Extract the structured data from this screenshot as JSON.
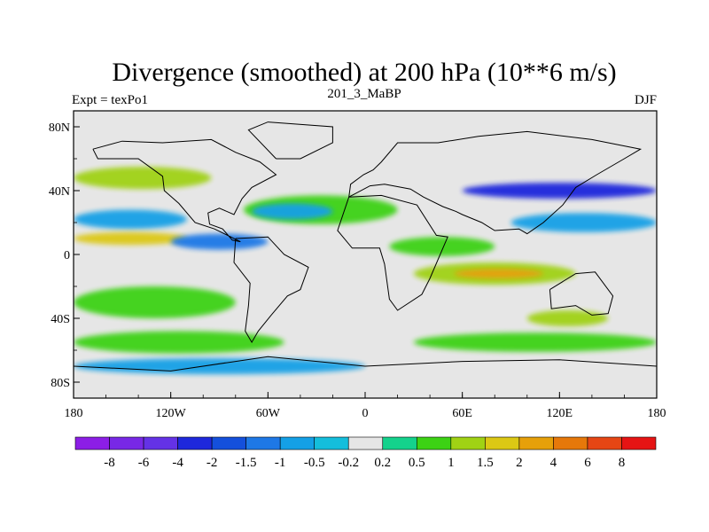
{
  "figure": {
    "title": "Divergence (smoothed) at 200 hPa (10**6 m/s)",
    "center_label": "201_3_MaBP",
    "left_label": "Expt = texPo1",
    "right_label": "DJF"
  },
  "map": {
    "lon_range": [
      -180,
      180
    ],
    "lat_range": [
      -90,
      90
    ],
    "x_ticks": [
      {
        "lon": -180,
        "label": "180"
      },
      {
        "lon": -120,
        "label": "120W"
      },
      {
        "lon": -60,
        "label": "60W"
      },
      {
        "lon": 0,
        "label": "0"
      },
      {
        "lon": 60,
        "label": "60E"
      },
      {
        "lon": 120,
        "label": "120E"
      },
      {
        "lon": 180,
        "label": "180"
      }
    ],
    "y_ticks": [
      {
        "lat": 80,
        "label": "80N"
      },
      {
        "lat": 40,
        "label": "40N"
      },
      {
        "lat": 0,
        "label": "0"
      },
      {
        "lat": -40,
        "label": "40S"
      },
      {
        "lat": -80,
        "label": "80S"
      }
    ],
    "background_color": "#e6e6e6",
    "coastline_color": "#000000",
    "fields": [
      {
        "kind": "band",
        "lat": 48,
        "width": 7,
        "lon1": -180,
        "lon2": -95,
        "level": 2
      },
      {
        "kind": "band",
        "lat": 22,
        "width": 6,
        "lon1": -180,
        "lon2": -110,
        "level": 0
      },
      {
        "kind": "band",
        "lat": 10,
        "width": 4,
        "lon1": -180,
        "lon2": -110,
        "level": 3
      },
      {
        "kind": "band",
        "lat": 8,
        "width": 5,
        "lon1": -120,
        "lon2": -60,
        "level": 1
      },
      {
        "kind": "band",
        "lat": 28,
        "width": 9,
        "lon1": -75,
        "lon2": 20,
        "level": 1
      },
      {
        "kind": "band",
        "lat": 27,
        "width": 5,
        "lon1": -70,
        "lon2": -20,
        "level": 0
      },
      {
        "kind": "band",
        "lat": 40,
        "width": 5,
        "lon1": 60,
        "lon2": 180,
        "level": 3
      },
      {
        "kind": "band",
        "lat": 20,
        "width": 6,
        "lon1": 90,
        "lon2": 180,
        "level": 0
      },
      {
        "kind": "band",
        "lat": -12,
        "width": 7,
        "lon1": 30,
        "lon2": 130,
        "level": 2
      },
      {
        "kind": "band",
        "lat": -12,
        "width": 3,
        "lon1": 55,
        "lon2": 110,
        "level": 4
      },
      {
        "kind": "band",
        "lat": 5,
        "width": 6,
        "lon1": 15,
        "lon2": 80,
        "level": 1
      },
      {
        "kind": "band",
        "lat": -30,
        "width": 10,
        "lon1": -180,
        "lon2": -80,
        "level": 1
      },
      {
        "kind": "band",
        "lat": -55,
        "width": 7,
        "lon1": -180,
        "lon2": -50,
        "level": 1
      },
      {
        "kind": "band",
        "lat": -55,
        "width": 6,
        "lon1": 30,
        "lon2": 180,
        "level": 1
      },
      {
        "kind": "band",
        "lat": -40,
        "width": 5,
        "lon1": 100,
        "lon2": 150,
        "level": 2
      },
      {
        "kind": "band",
        "lat": -70,
        "width": 5,
        "lon1": -180,
        "lon2": 0,
        "level": 0
      }
    ],
    "coastlines": [
      [
        [
          -168,
          66
        ],
        [
          -150,
          71
        ],
        [
          -125,
          70
        ],
        [
          -95,
          72
        ],
        [
          -80,
          64
        ],
        [
          -65,
          58
        ],
        [
          -55,
          50
        ],
        [
          -70,
          42
        ],
        [
          -76,
          35
        ],
        [
          -81,
          25
        ],
        [
          -90,
          29
        ],
        [
          -97,
          26
        ],
        [
          -96,
          19
        ],
        [
          -88,
          16
        ],
        [
          -82,
          9
        ],
        [
          -77,
          8
        ],
        [
          -93,
          16
        ],
        [
          -105,
          20
        ],
        [
          -115,
          32
        ],
        [
          -124,
          40
        ],
        [
          -125,
          49
        ],
        [
          -140,
          60
        ],
        [
          -165,
          60
        ],
        [
          -168,
          66
        ]
      ],
      [
        [
          -80,
          10
        ],
        [
          -60,
          11
        ],
        [
          -50,
          0
        ],
        [
          -35,
          -8
        ],
        [
          -40,
          -22
        ],
        [
          -48,
          -26
        ],
        [
          -58,
          -38
        ],
        [
          -66,
          -48
        ],
        [
          -70,
          -55
        ],
        [
          -74,
          -48
        ],
        [
          -72,
          -32
        ],
        [
          -71,
          -18
        ],
        [
          -81,
          -5
        ],
        [
          -80,
          10
        ]
      ],
      [
        [
          -10,
          36
        ],
        [
          10,
          37
        ],
        [
          32,
          31
        ],
        [
          44,
          12
        ],
        [
          51,
          11
        ],
        [
          40,
          -15
        ],
        [
          35,
          -25
        ],
        [
          20,
          -35
        ],
        [
          15,
          -28
        ],
        [
          12,
          -6
        ],
        [
          9,
          4
        ],
        [
          -8,
          4
        ],
        [
          -17,
          15
        ],
        [
          -10,
          36
        ]
      ],
      [
        [
          -10,
          36
        ],
        [
          -9,
          44
        ],
        [
          -1,
          50
        ],
        [
          5,
          53
        ],
        [
          10,
          58
        ],
        [
          20,
          70
        ],
        [
          45,
          70
        ],
        [
          70,
          74
        ],
        [
          100,
          77
        ],
        [
          140,
          72
        ],
        [
          170,
          66
        ],
        [
          160,
          60
        ],
        [
          143,
          50
        ],
        [
          130,
          42
        ],
        [
          122,
          31
        ],
        [
          110,
          20
        ],
        [
          100,
          13
        ],
        [
          95,
          16
        ],
        [
          80,
          15
        ],
        [
          72,
          20
        ],
        [
          60,
          25
        ],
        [
          56,
          27
        ],
        [
          48,
          30
        ],
        [
          36,
          36
        ],
        [
          28,
          41
        ],
        [
          12,
          44
        ],
        [
          3,
          43
        ],
        [
          -10,
          36
        ]
      ],
      [
        [
          114,
          -22
        ],
        [
          130,
          -12
        ],
        [
          142,
          -11
        ],
        [
          153,
          -26
        ],
        [
          150,
          -37
        ],
        [
          140,
          -38
        ],
        [
          130,
          -32
        ],
        [
          115,
          -34
        ],
        [
          114,
          -22
        ]
      ],
      [
        [
          -55,
          60
        ],
        [
          -40,
          60
        ],
        [
          -20,
          70
        ],
        [
          -20,
          80
        ],
        [
          -60,
          83
        ],
        [
          -72,
          78
        ],
        [
          -55,
          60
        ]
      ],
      [
        [
          -180,
          -70
        ],
        [
          -120,
          -73
        ],
        [
          -60,
          -64
        ],
        [
          0,
          -70
        ],
        [
          60,
          -67
        ],
        [
          120,
          -66
        ],
        [
          180,
          -70
        ]
      ]
    ]
  },
  "colorbar": {
    "colors": [
      "#8c1ee6",
      "#7828e6",
      "#6432e6",
      "#1e28dc",
      "#1450dc",
      "#1e78e6",
      "#14a0e6",
      "#14bedc",
      "#e6e6e6",
      "#14d28c",
      "#3cd214",
      "#a0d214",
      "#dcc814",
      "#e6a00a",
      "#e6780a",
      "#e64614",
      "#e61414"
    ],
    "labels": [
      "-8",
      "-6",
      "-4",
      "-2",
      "-1.5",
      "-1",
      "-0.5",
      "-0.2",
      "0.2",
      "0.5",
      "1",
      "1.5",
      "2",
      "4",
      "6",
      "8"
    ]
  }
}
